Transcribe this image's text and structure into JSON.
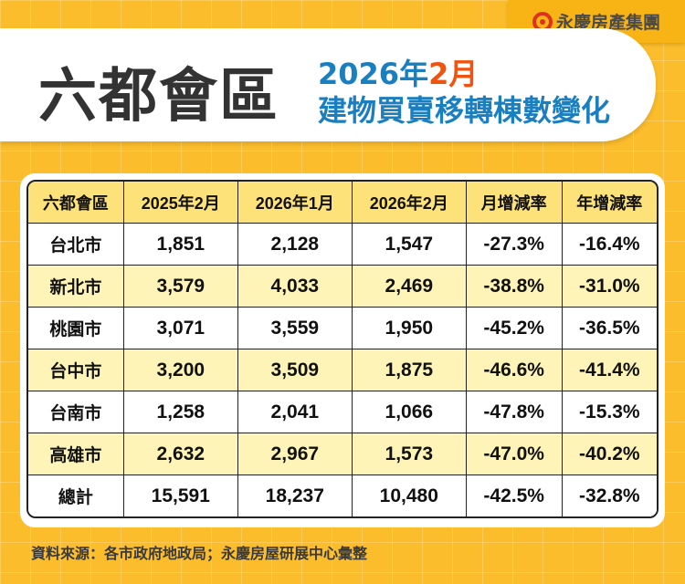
{
  "brand": {
    "logo_text": "永慶房產集團",
    "colors": {
      "background": "#fbbd2c",
      "title_blue": "#1a7fc0",
      "highlight_orange": "#f0520f",
      "header_yellow": "#fde27a",
      "row_alt": "#fff4b8"
    }
  },
  "title": {
    "main": "六都會區",
    "sub_year": "2026年",
    "sub_month": "2月",
    "sub_line2": "建物買賣移轉棟數變化"
  },
  "chart_data": {
    "type": "table",
    "columns": [
      "六都會區",
      "2025年2月",
      "2026年1月",
      "2026年2月",
      "月增減率",
      "年增減率"
    ],
    "rows": [
      [
        "台北市",
        "1,851",
        "2,128",
        "1,547",
        "-27.3%",
        "-16.4%"
      ],
      [
        "新北市",
        "3,579",
        "4,033",
        "2,469",
        "-38.8%",
        "-31.0%"
      ],
      [
        "桃園市",
        "3,071",
        "3,559",
        "1,950",
        "-45.2%",
        "-36.5%"
      ],
      [
        "台中市",
        "3,200",
        "3,509",
        "1,875",
        "-46.6%",
        "-41.4%"
      ],
      [
        "台南市",
        "1,258",
        "2,041",
        "1,066",
        "-47.8%",
        "-15.3%"
      ],
      [
        "高雄市",
        "2,632",
        "2,967",
        "1,573",
        "-47.0%",
        "-40.2%"
      ],
      [
        "總計",
        "15,591",
        "18,237",
        "10,480",
        "-42.5%",
        "-32.8%"
      ]
    ]
  },
  "footer": "資料來源：各市政府地政局；永慶房屋研展中心彙整"
}
